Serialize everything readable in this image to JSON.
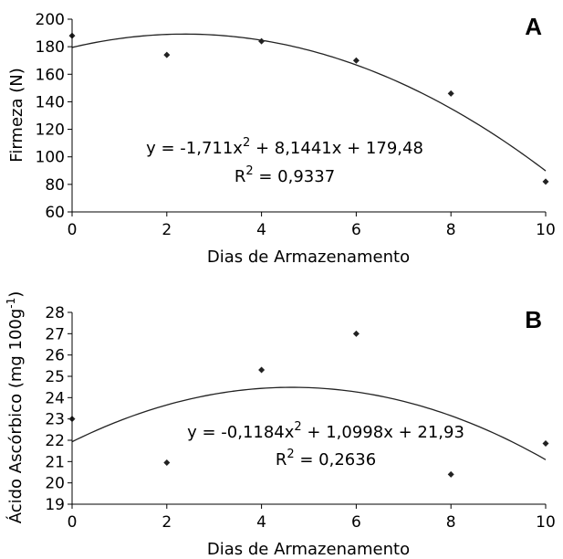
{
  "chart_data": [
    {
      "type": "scatter",
      "panel_label": "A",
      "xlabel": "Dias de Armazenamento",
      "ylabel": "Firmeza (N)",
      "xlim": [
        0,
        10
      ],
      "ylim": [
        60,
        200
      ],
      "x_ticks": [
        0,
        2,
        4,
        6,
        8,
        10
      ],
      "y_ticks": [
        60,
        80,
        100,
        120,
        140,
        160,
        180,
        200
      ],
      "series": [
        {
          "x": [
            0,
            2,
            4,
            6,
            8,
            10
          ],
          "y": [
            188,
            174,
            184,
            170,
            146,
            82
          ]
        }
      ],
      "trendline": {
        "type": "polynomial",
        "a": -1.711,
        "b": 8.1441,
        "c": 179.48
      },
      "equation": {
        "prefix": "y = -1,711x",
        "exp": "2",
        "suffix": " + 8,1441x + 179,48"
      },
      "r2": {
        "prefix": "R",
        "exp": "2",
        "suffix": " = 0,9337"
      },
      "grid": false,
      "legend": "none"
    },
    {
      "type": "scatter",
      "panel_label": "B",
      "xlabel": "Dias de Armazenamento",
      "ylabel_prefix": "Ácido Ascórbico (mg 100g",
      "ylabel_exp": "-1",
      "ylabel_suffix": ")",
      "xlim": [
        0,
        10
      ],
      "ylim": [
        19,
        28
      ],
      "x_ticks": [
        0,
        2,
        4,
        6,
        8,
        10
      ],
      "y_ticks": [
        19,
        20,
        21,
        22,
        23,
        24,
        25,
        26,
        27,
        28
      ],
      "series": [
        {
          "x": [
            0,
            2,
            4,
            6,
            8,
            10
          ],
          "y": [
            23.0,
            20.95,
            25.3,
            27.0,
            20.4,
            21.85
          ]
        }
      ],
      "trendline": {
        "type": "polynomial",
        "a": -0.1184,
        "b": 1.0998,
        "c": 21.93
      },
      "equation": {
        "prefix": "y = -0,1184x",
        "exp": "2",
        "suffix": " + 1,0998x + 21,93"
      },
      "r2": {
        "prefix": "R",
        "exp": "2",
        "suffix": " = 0,2636"
      },
      "grid": false,
      "legend": "none"
    }
  ]
}
